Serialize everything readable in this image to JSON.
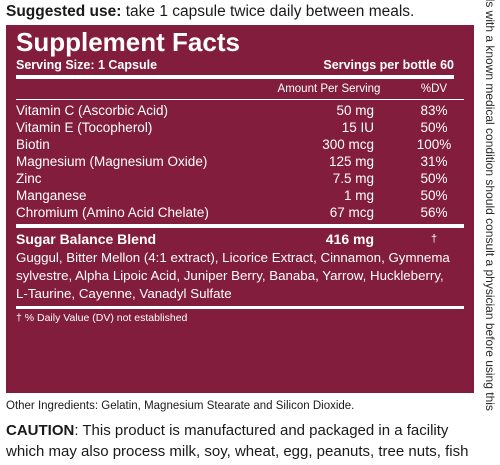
{
  "suggested_use": {
    "label": "Suggested use:",
    "text": " take 1 capsule twice daily between meals."
  },
  "supplement_facts": {
    "title": "Supplement Facts",
    "serving_size": "Serving Size: 1 Capsule",
    "servings_per_bottle": "Servings per bottle 60",
    "col_amount": "Amount Per Serving",
    "col_dv": "%DV",
    "nutrients": [
      {
        "name": "Vitamin C (Ascorbic Acid)",
        "amount": "50 mg",
        "dv": "83%"
      },
      {
        "name": "Vitamin E (Tocopherol)",
        "amount": "15 IU",
        "dv": "50%"
      },
      {
        "name": "Biotin",
        "amount": "300 mcg",
        "dv": "100%"
      },
      {
        "name": "Magnesium (Magnesium Oxide)",
        "amount": "125 mg",
        "dv": "31%"
      },
      {
        "name": "Zinc",
        "amount": "7.5 mg",
        "dv": "50%"
      },
      {
        "name": "Manganese",
        "amount": "1 mg",
        "dv": "50%"
      },
      {
        "name": "Chromium (Amino Acid Chelate)",
        "amount": "67 mcg",
        "dv": "56%"
      }
    ],
    "blend": {
      "name": "Sugar Balance Blend",
      "amount": "416 mg",
      "dv": "†",
      "ingredients": "Guggul, Bitter Mellon (4:1 extract), Licorice Extract, Cinnamon, Gymnema sylvestre, Alpha Lipoic Acid, Juniper Berry, Banaba, Yarrow, Huckleberry, L-Taurine, Cayenne, Vanadyl Sulfate"
    },
    "footnote": "† % Daily Value (DV) not established"
  },
  "other_ingredients": "Other Ingredients: Gelatin, Magnesium Stearate and Silicon Dioxide.",
  "caution": {
    "label": "CAUTION",
    "text": ": This product is manufactured and packaged in a facility which may also process milk, soy, wheat, egg, peanuts, tree nuts, fish"
  },
  "side_text": "als with a known medical condition should consult a physician before using this",
  "colors": {
    "panel": "#821d3e",
    "text": "#1a1a1a"
  }
}
